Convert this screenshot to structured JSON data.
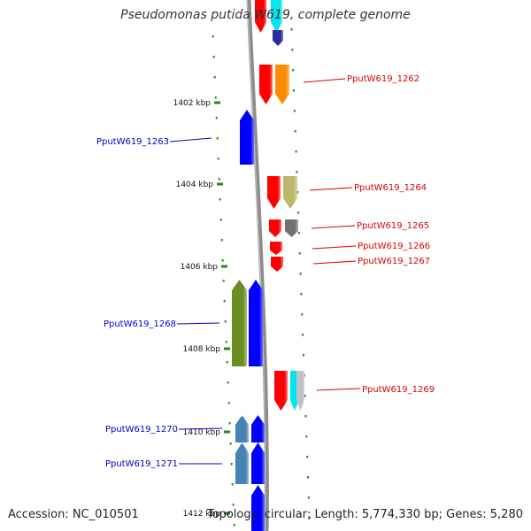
{
  "title": "Pseudomonas putida W619, complete genome",
  "footer": {
    "accession": "Accession: NC_010501",
    "summary": "Topology: circular; Length: 5,774,330 bp; Genes: 5,280"
  },
  "ticks": [
    {
      "label": "1402 kbp"
    },
    {
      "label": "1404 kbp"
    },
    {
      "label": "1406 kbp"
    },
    {
      "label": "1408 kbp"
    },
    {
      "label": "1410 kbp"
    },
    {
      "label": "1412 kbp"
    }
  ],
  "genes": [
    {
      "id": "g-top1",
      "label": "",
      "strand": "plus",
      "color": "#ff0000"
    },
    {
      "id": "g-top2",
      "label": "",
      "strand": "plus",
      "color": "#00e5ee"
    },
    {
      "id": "g-top3",
      "label": "",
      "strand": "plus",
      "color": "#2b2b9a"
    },
    {
      "id": "PputW619_1262",
      "label": "PputW619_1262",
      "strand": "plus",
      "color": "#ff0000"
    },
    {
      "id": "PputW619_1262b",
      "label": "",
      "strand": "plus",
      "color": "#ff8c00"
    },
    {
      "id": "PputW619_1263",
      "label": "PputW619_1263",
      "strand": "minus",
      "color": "#0000ff"
    },
    {
      "id": "PputW619_1264",
      "label": "PputW619_1264",
      "strand": "plus",
      "color": "#ff0000"
    },
    {
      "id": "PputW619_1264b",
      "label": "",
      "strand": "plus",
      "color": "#bdb76b"
    },
    {
      "id": "PputW619_1265",
      "label": "PputW619_1265",
      "strand": "plus",
      "color": "#ff0000"
    },
    {
      "id": "PputW619_1265b",
      "label": "",
      "strand": "plus",
      "color": "#707070"
    },
    {
      "id": "PputW619_1266",
      "label": "PputW619_1266",
      "strand": "plus",
      "color": "#ff0000"
    },
    {
      "id": "PputW619_1267",
      "label": "PputW619_1267",
      "strand": "plus",
      "color": "#ff0000"
    },
    {
      "id": "PputW619_1268",
      "label": "PputW619_1268",
      "strand": "minus",
      "color": "#6b8e23"
    },
    {
      "id": "PputW619_1268b",
      "label": "",
      "strand": "minus",
      "color": "#0000ff"
    },
    {
      "id": "PputW619_1269",
      "label": "PputW619_1269",
      "strand": "plus",
      "color": "#ff0000"
    },
    {
      "id": "PputW619_1269b",
      "label": "",
      "strand": "plus",
      "color": "#00e5ee"
    },
    {
      "id": "PputW619_1269c",
      "label": "",
      "strand": "plus",
      "color": "#c0c0c0"
    },
    {
      "id": "PputW619_1270",
      "label": "PputW619_1270",
      "strand": "minus",
      "color": "#4682b4"
    },
    {
      "id": "PputW619_1270b",
      "label": "",
      "strand": "minus",
      "color": "#0000ff"
    },
    {
      "id": "PputW619_1271",
      "label": "PputW619_1271",
      "strand": "minus",
      "color": "#4682b4"
    },
    {
      "id": "PputW619_1271b",
      "label": "",
      "strand": "minus",
      "color": "#0000ff"
    },
    {
      "id": "g-bot1",
      "label": "",
      "strand": "minus",
      "color": "#0000ff"
    }
  ],
  "colors": {
    "backbone": "#8c8c8c",
    "tick": "#228b22",
    "plus_label": "#dd0000",
    "minus_label": "#0000cc"
  }
}
